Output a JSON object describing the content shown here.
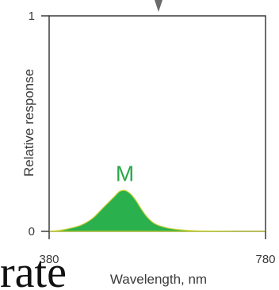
{
  "chart_data": {
    "type": "area",
    "title": "",
    "xlabel": "Wavelength, nm",
    "ylabel": "Relative response",
    "xlim": [
      380,
      780
    ],
    "ylim": [
      0,
      1
    ],
    "x_ticks": [
      "380",
      "780"
    ],
    "y_ticks": [
      "0",
      "1"
    ],
    "grid": false,
    "series": [
      {
        "name": "M",
        "color": "#2ab04c",
        "x": [
          380,
          400,
          420,
          440,
          460,
          480,
          500,
          510,
          520,
          530,
          540,
          550,
          560,
          570,
          580,
          600,
          620,
          640,
          660,
          700,
          740,
          780
        ],
        "y": [
          0.0,
          0.005,
          0.015,
          0.03,
          0.06,
          0.11,
          0.16,
          0.185,
          0.19,
          0.175,
          0.145,
          0.105,
          0.07,
          0.045,
          0.03,
          0.015,
          0.008,
          0.004,
          0.002,
          0.001,
          0.0,
          0.0
        ]
      }
    ]
  },
  "partial_text": "rate"
}
